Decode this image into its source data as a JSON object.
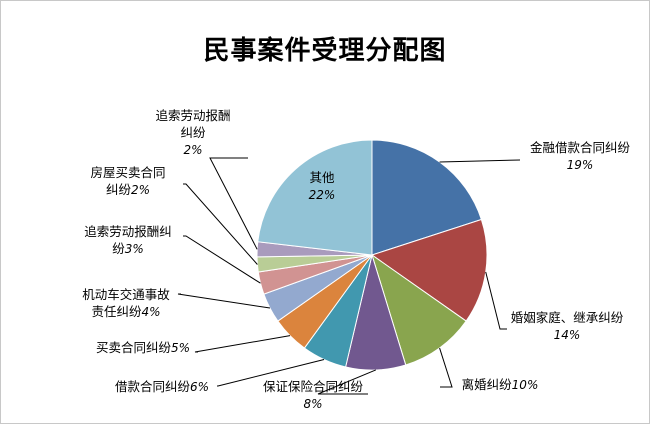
{
  "chart_data": {
    "type": "pie",
    "title": "民事案件受理分配图",
    "slices": [
      {
        "label": "金融借款合同纠纷",
        "pct_text": "19%",
        "value": 19,
        "color": "#4572a7"
      },
      {
        "label": "婚姻家庭、继承纠纷",
        "pct_text": "14%",
        "value": 14,
        "color": "#aa4643"
      },
      {
        "label": "离婚纠纷",
        "pct_text": "10%",
        "value": 10,
        "color": "#89a54e"
      },
      {
        "label": "保证保险合同纠纷",
        "pct_text": "8%",
        "value": 8,
        "color": "#71588f"
      },
      {
        "label": "借款合同纠纷",
        "pct_text": "6%",
        "value": 6,
        "color": "#4198af"
      },
      {
        "label": "买卖合同纠纷",
        "pct_text": "5%",
        "value": 5,
        "color": "#db843d"
      },
      {
        "label": "机动车交通事故责任纠纷",
        "pct_text": "4%",
        "value": 4,
        "color": "#93a9cf"
      },
      {
        "label": "追索劳动报酬纠纷",
        "pct_text": "3%",
        "value": 3,
        "color": "#d19392"
      },
      {
        "label": "房屋买卖合同纠纷",
        "pct_text": "2%",
        "value": 2,
        "color": "#b9cd96"
      },
      {
        "label": "追索劳动报酬纠纷",
        "pct_text": "2%",
        "value": 2,
        "color": "#a99bbd"
      },
      {
        "label": "其他",
        "pct_text": "22%",
        "value": 22,
        "color": "#92c3d6"
      }
    ]
  }
}
